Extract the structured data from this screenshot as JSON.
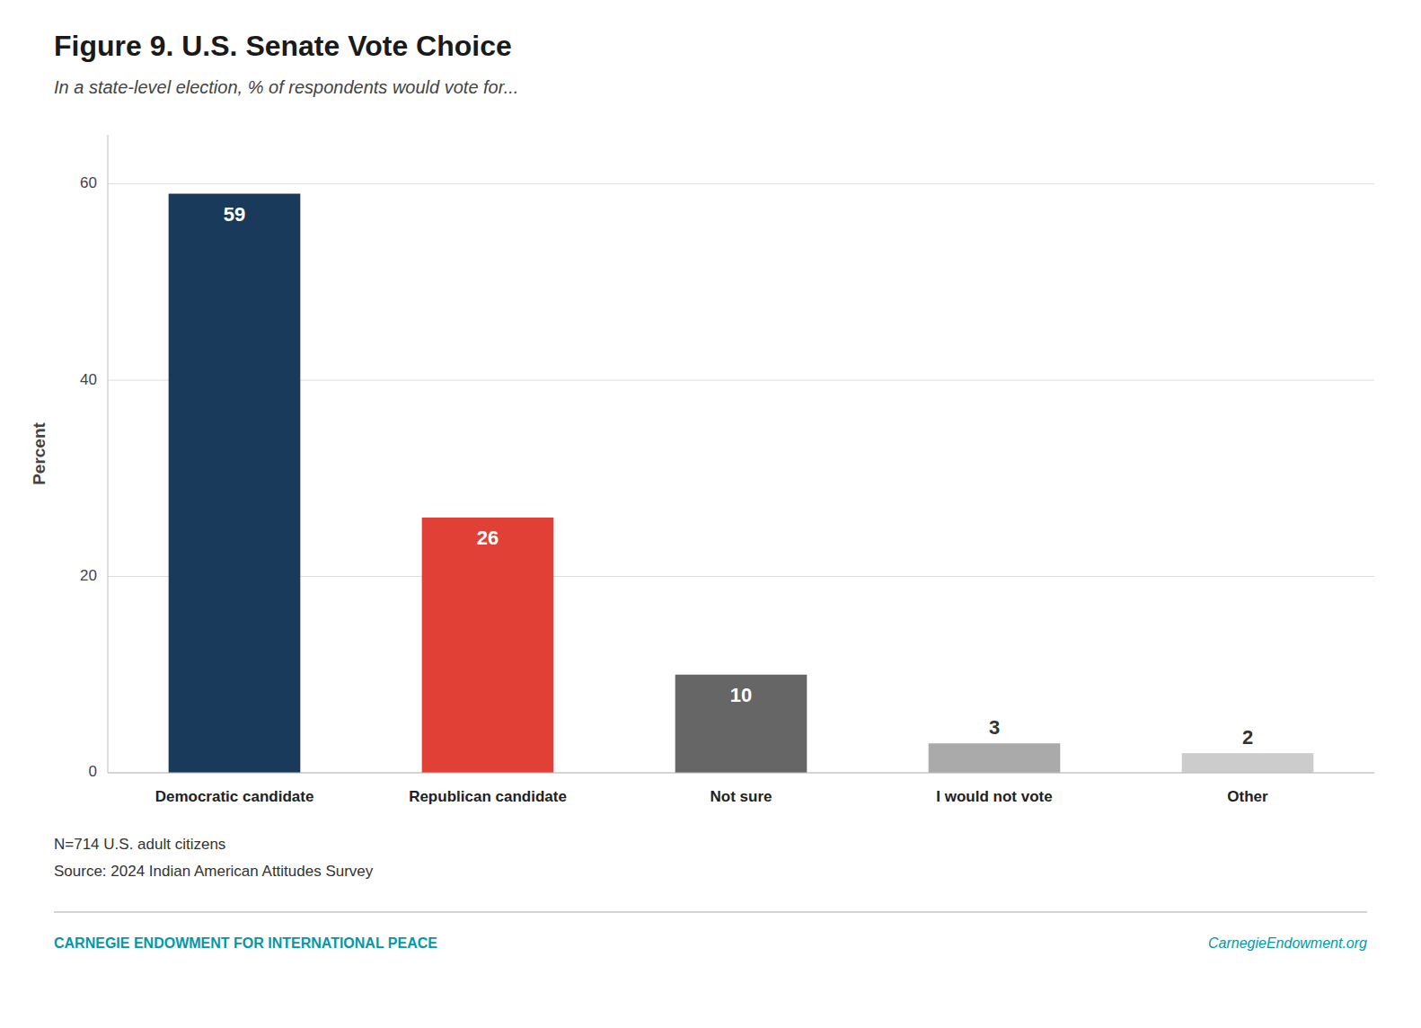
{
  "chart_data": {
    "type": "bar",
    "title": "Figure 9. U.S. Senate Vote Choice",
    "subtitle": "In a state-level election, % of respondents would vote for...",
    "categories": [
      "Democratic candidate",
      "Republican candidate",
      "Not sure",
      "I would not vote",
      "Other"
    ],
    "values": [
      59,
      26,
      10,
      3,
      2
    ],
    "colors": [
      "#1a3a5c",
      "#e04035",
      "#666666",
      "#aaaaaa",
      "#cccccc"
    ],
    "y_label": "Percent",
    "ylim": [
      0,
      65
    ],
    "yticks": [
      0,
      20,
      40,
      60
    ],
    "grid": true,
    "data_labels": true,
    "annotations": [
      "N=714 U.S. adult citizens",
      "Source: 2024 Indian American Attitudes Survey",
      "CARNEGIE ENDOWMENT FOR INTERNATIONAL PEACE",
      "CarnegieEndowment.org"
    ]
  }
}
